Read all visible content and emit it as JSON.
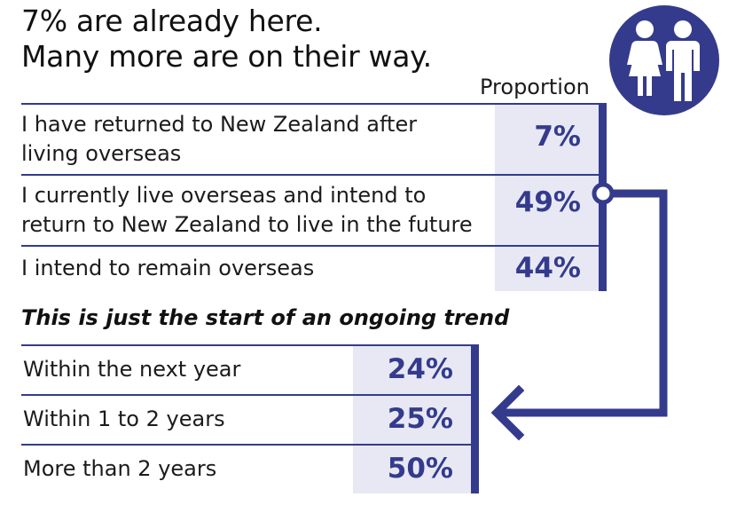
{
  "headline": {
    "line1": "7% are already here.",
    "line2": "Many more are on their way."
  },
  "icon": "man-and-woman-icon",
  "colors": {
    "accent": "#343b8c",
    "cell_bg": "#e7e8f4",
    "text": "#1b1b1b"
  },
  "chart_data": [
    {
      "type": "table",
      "column_header": "Proportion",
      "rows": [
        {
          "line1": "I have returned to New Zealand after",
          "line2": "living overseas",
          "value": "7%"
        },
        {
          "line1": "I currently live overseas and intend to",
          "line2": "return to New Zealand to live in the future",
          "value": "49%"
        },
        {
          "line1": "I intend to remain overseas",
          "line2": "",
          "value": "44%"
        }
      ]
    },
    {
      "type": "table",
      "title": "This is just the start of an ongoing trend",
      "rows": [
        {
          "label": "Within the next year",
          "value": "24%"
        },
        {
          "label": "Within 1 to 2 years",
          "value": "25%"
        },
        {
          "label": "More than 2 years",
          "value": "50%"
        }
      ]
    }
  ]
}
